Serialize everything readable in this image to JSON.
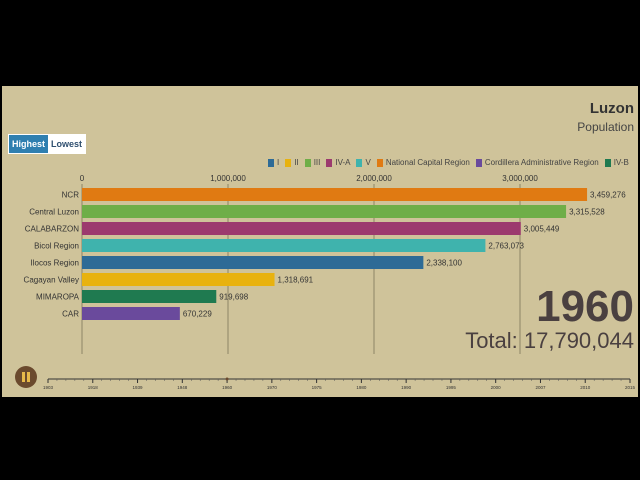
{
  "header": {
    "title": "Luzon",
    "subtitle": "Population"
  },
  "controls": {
    "highest_label": "Highest",
    "lowest_label": "Lowest",
    "play_icon": "pause-icon"
  },
  "legend": [
    {
      "label": "I",
      "color": "#2e6b96"
    },
    {
      "label": "II",
      "color": "#e8b20f"
    },
    {
      "label": "III",
      "color": "#6fae48"
    },
    {
      "label": "IV-A",
      "color": "#9c3a6e"
    },
    {
      "label": "V",
      "color": "#3fb3ad"
    },
    {
      "label": "National Capital Region",
      "color": "#e07a12"
    },
    {
      "label": "Cordillera Administrative Region",
      "color": "#6a4a9c"
    },
    {
      "label": "IV-B",
      "color": "#1f7a50"
    }
  ],
  "status": {
    "year": "1960",
    "total": "Total: 17,790,044"
  },
  "chart_data": {
    "type": "bar",
    "orientation": "horizontal",
    "xlim": [
      0,
      3500000
    ],
    "x_ticks": [
      "0",
      "1,000,000",
      "2,000,000",
      "3,000,000"
    ],
    "x_tick_values": [
      0,
      1000000,
      2000000,
      3000000
    ],
    "categories": [
      "NCR",
      "Central Luzon",
      "CALABARZON",
      "Bicol Region",
      "Ilocos Region",
      "Cagayan Valley",
      "MIMAROPA",
      "CAR"
    ],
    "values": [
      3459276,
      3315528,
      3005449,
      2763073,
      2338100,
      1318691,
      919698,
      670229
    ],
    "value_labels": [
      "3,459,276",
      "3,315,528",
      "3,005,449",
      "2,763,073",
      "2,338,100",
      "1,318,691",
      "919,698",
      "670,229"
    ],
    "colors": [
      "#e07a12",
      "#6fae48",
      "#9c3a6e",
      "#3fb3ad",
      "#2e6b96",
      "#e8b20f",
      "#1f7a50",
      "#6a4a9c"
    ],
    "timeline_ticks": [
      "1903",
      "1918",
      "1939",
      "1948",
      "1960",
      "1970",
      "1975",
      "1980",
      "1990",
      "1995",
      "2000",
      "2007",
      "2010",
      "2015"
    ],
    "current_year": 1960
  }
}
